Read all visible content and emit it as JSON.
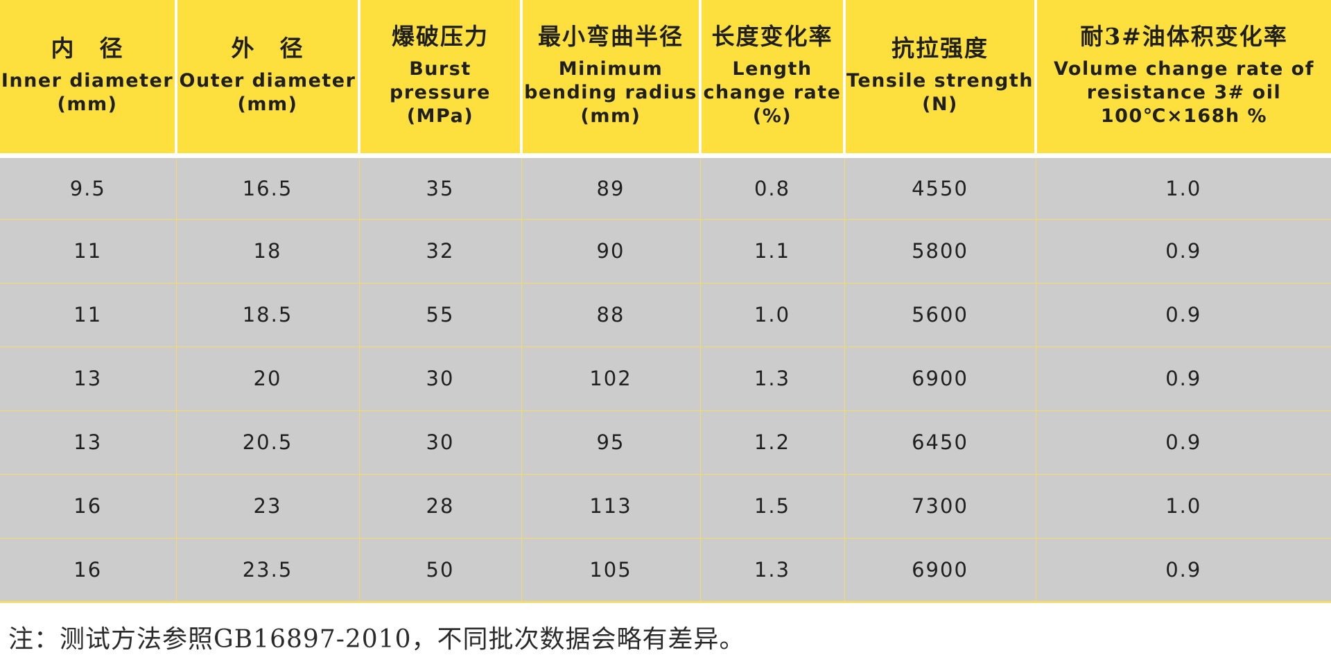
{
  "table": {
    "columns": [
      {
        "cn": "内　径",
        "en": "Inner diameter",
        "unit": "(mm)"
      },
      {
        "cn": "外　径",
        "en": "Outer diameter",
        "unit": "(mm)"
      },
      {
        "cn": "爆破压力",
        "en": "Burst pressure",
        "unit": "(MPa)"
      },
      {
        "cn": "最小弯曲半径",
        "en": "Minimum bending radius",
        "unit": "(mm)"
      },
      {
        "cn": "长度变化率",
        "en": "Length change rate",
        "unit": "(%)"
      },
      {
        "cn": "抗拉强度",
        "en": "Tensile strength",
        "unit": "(N)"
      },
      {
        "cn": "耐3#油体积变化率",
        "en": "Volume change rate of resistance 3# oil",
        "unit": "100℃×168h %"
      }
    ],
    "rows": [
      [
        "9.5",
        "16.5",
        "35",
        "89",
        "0.8",
        "4550",
        "1.0"
      ],
      [
        "11",
        "18",
        "32",
        "90",
        "1.1",
        "5800",
        "0.9"
      ],
      [
        "11",
        "18.5",
        "55",
        "88",
        "1.0",
        "5600",
        "0.9"
      ],
      [
        "13",
        "20",
        "30",
        "102",
        "1.3",
        "6900",
        "0.9"
      ],
      [
        "13",
        "20.5",
        "30",
        "95",
        "1.2",
        "6450",
        "0.9"
      ],
      [
        "16",
        "23",
        "28",
        "113",
        "1.5",
        "7300",
        "1.0"
      ],
      [
        "16",
        "23.5",
        "50",
        "105",
        "1.3",
        "6900",
        "0.9"
      ]
    ]
  },
  "footnote": "注：测试方法参照GB16897-2010，不同批次数据会略有差异。",
  "colors": {
    "header_bg": "#fddf3e",
    "body_bg": "#cccccc",
    "grid_line": "#f3dc6a"
  }
}
